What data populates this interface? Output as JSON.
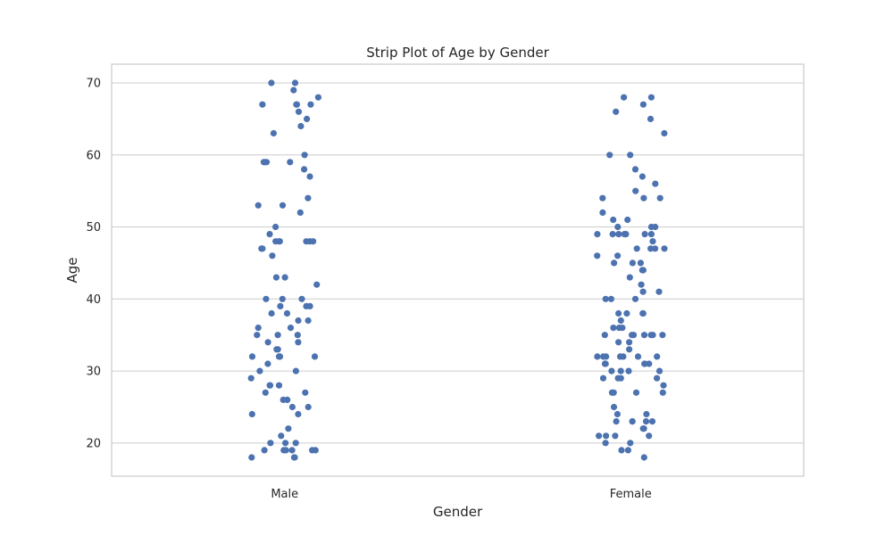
{
  "chart_data": {
    "type": "scatter",
    "subtype": "strip",
    "title": "Strip Plot of Age by Gender",
    "xlabel": "Gender",
    "ylabel": "Age",
    "categories": [
      "Male",
      "Female"
    ],
    "ylim": [
      15.4,
      72.6
    ],
    "yticks": [
      20,
      30,
      40,
      50,
      60,
      70
    ],
    "grid": true,
    "point_color": "#4c72b0",
    "series": [
      {
        "category": "Male",
        "values": [
          70,
          70,
          69,
          68,
          67,
          67,
          67,
          67,
          66,
          65,
          64,
          63,
          60,
          59,
          59,
          59,
          59,
          58,
          57,
          54,
          53,
          53,
          52,
          50,
          49,
          48,
          48,
          48,
          48,
          48,
          48,
          47,
          47,
          46,
          43,
          43,
          42,
          40,
          40,
          40,
          39,
          39,
          39,
          38,
          38,
          37,
          37,
          36,
          36,
          35,
          35,
          35,
          34,
          34,
          33,
          33,
          32,
          32,
          32,
          32,
          31,
          30,
          30,
          29,
          28,
          28,
          28,
          27,
          27,
          26,
          26,
          25,
          25,
          24,
          24,
          22,
          21,
          20,
          20,
          20,
          19,
          19,
          19,
          19,
          19,
          19,
          18,
          18,
          18
        ]
      },
      {
        "category": "Female",
        "values": [
          68,
          68,
          67,
          66,
          65,
          63,
          60,
          60,
          58,
          57,
          56,
          55,
          54,
          54,
          54,
          52,
          51,
          51,
          50,
          50,
          50,
          49,
          49,
          49,
          49,
          49,
          49,
          49,
          48,
          47,
          47,
          47,
          47,
          46,
          46,
          45,
          45,
          45,
          44,
          44,
          43,
          42,
          41,
          41,
          40,
          40,
          40,
          38,
          38,
          38,
          38,
          37,
          36,
          36,
          36,
          35,
          35,
          35,
          35,
          35,
          35,
          35,
          34,
          34,
          33,
          32,
          32,
          32,
          32,
          32,
          32,
          32,
          31,
          31,
          31,
          31,
          31,
          31,
          30,
          30,
          30,
          30,
          29,
          29,
          29,
          29,
          28,
          27,
          27,
          27,
          27,
          25,
          24,
          24,
          23,
          23,
          23,
          23,
          23,
          22,
          22,
          21,
          21,
          21,
          21,
          20,
          20,
          19,
          19,
          18
        ]
      }
    ]
  }
}
